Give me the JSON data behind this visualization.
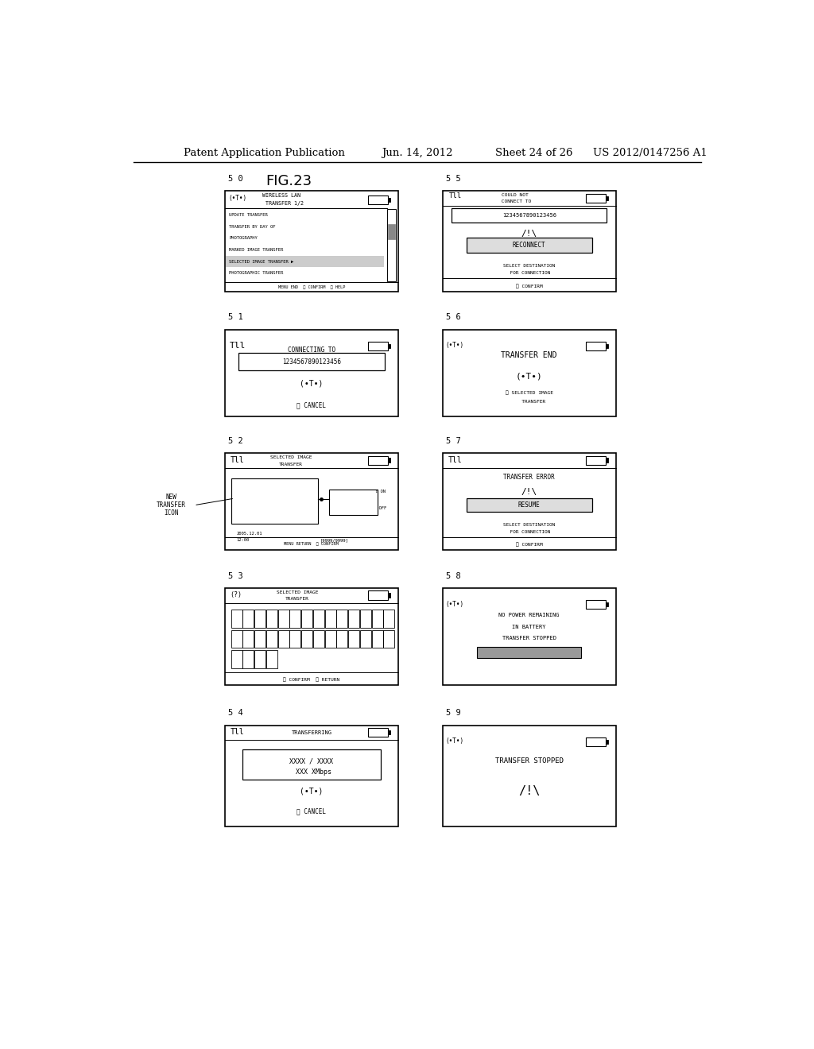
{
  "title_header": "Patent Application Publication",
  "date_header": "Jun. 14, 2012",
  "sheet_header": "Sheet 24 of 26",
  "patent_header": "US 2012/0147256 A1",
  "fig_label": "FIG.23",
  "background": "#ffffff",
  "text_color": "#000000"
}
